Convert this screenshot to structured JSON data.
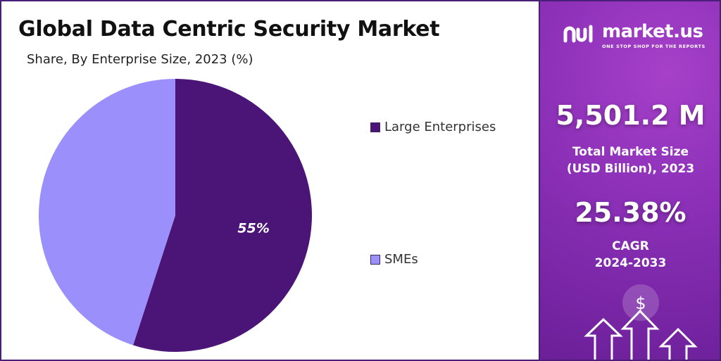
{
  "chart_data": {
    "type": "pie",
    "title": "Global Data Centric Security Market",
    "subtitle": "Share, By Enterprise Size, 2023 (%)",
    "categories": [
      "Large Enterprises",
      "SMEs"
    ],
    "values": [
      55,
      45
    ],
    "data_labels": [
      "55%",
      ""
    ],
    "colors": [
      "#4a1577",
      "#9b90fb"
    ],
    "legend_position": "right"
  },
  "brand": {
    "name": "market.us",
    "tagline": "ONE STOP SHOP FOR THE REPORTS"
  },
  "stats": {
    "market_size_value": "5,501.2 M",
    "market_size_label_line1": "Total Market Size",
    "market_size_label_line2": "(USD Billion), 2023",
    "cagr_value": "25.38%",
    "cagr_label": "CAGR",
    "cagr_period": "2024-2033"
  }
}
